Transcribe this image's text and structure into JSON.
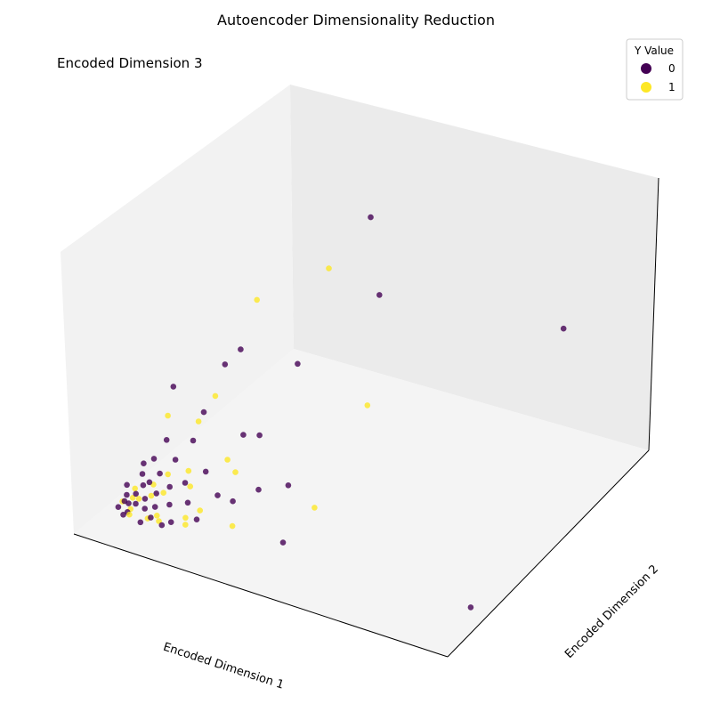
{
  "chart_data": {
    "type": "scatter",
    "projection": "3d",
    "title": "Autoencoder Dimensionality Reduction",
    "xlabel": "Encoded Dimension 1",
    "ylabel": "Encoded Dimension 2",
    "zlabel": "Encoded Dimension 3",
    "ticks_visible": false,
    "legend": {
      "title": "Y Value",
      "placement": "top-right",
      "entries": [
        {
          "label": "0",
          "color": "#440154"
        },
        {
          "label": "1",
          "color": "#FDE725"
        }
      ]
    },
    "colors": {
      "class_0": "#440154",
      "class_1": "#FDE725"
    },
    "series": [
      {
        "values": [
          [
            0.05,
            0.08,
            0.03
          ],
          [
            0.07,
            0.1,
            0.05
          ],
          [
            0.08,
            0.12,
            0.04
          ],
          [
            0.06,
            0.14,
            0.06
          ],
          [
            0.09,
            0.09,
            0.02
          ],
          [
            0.1,
            0.15,
            0.07
          ],
          [
            0.12,
            0.11,
            0.05
          ],
          [
            0.04,
            0.18,
            0.08
          ],
          [
            0.11,
            0.2,
            0.09
          ],
          [
            0.14,
            0.16,
            0.06
          ],
          [
            0.13,
            0.22,
            0.1
          ],
          [
            0.16,
            0.12,
            0.04
          ],
          [
            0.08,
            0.25,
            0.11
          ],
          [
            0.18,
            0.19,
            0.08
          ],
          [
            0.15,
            0.28,
            0.12
          ],
          [
            0.2,
            0.14,
            0.05
          ],
          [
            0.06,
            0.3,
            0.13
          ],
          [
            0.22,
            0.24,
            0.1
          ],
          [
            0.1,
            0.32,
            0.15
          ],
          [
            0.25,
            0.18,
            0.06
          ],
          [
            0.19,
            0.35,
            0.16
          ],
          [
            0.28,
            0.27,
            0.12
          ],
          [
            0.3,
            0.1,
            0.03
          ],
          [
            0.12,
            0.4,
            0.2
          ],
          [
            0.24,
            0.42,
            0.22
          ],
          [
            0.33,
            0.2,
            0.08
          ],
          [
            0.35,
            0.33,
            0.16
          ],
          [
            0.4,
            0.15,
            0.05
          ],
          [
            0.45,
            0.25,
            0.12
          ],
          [
            0.5,
            0.3,
            0.1
          ],
          [
            0.55,
            0.45,
            0.3
          ],
          [
            0.2,
            0.3,
            0.42
          ],
          [
            0.3,
            0.6,
            0.45
          ],
          [
            0.25,
            0.5,
            0.3
          ],
          [
            0.6,
            0.35,
            0.15
          ],
          [
            0.72,
            0.4,
            0.18
          ],
          [
            0.35,
            0.65,
            0.5
          ],
          [
            0.8,
            0.2,
            0.05
          ],
          [
            0.42,
            0.55,
            0.25
          ],
          [
            1.7,
            0.25,
            0.02
          ],
          [
            0.7,
            1.2,
            0.9
          ],
          [
            0.9,
            0.9,
            0.75
          ],
          [
            1.3,
            1.9,
            0.5
          ],
          [
            0.58,
            0.75,
            0.48
          ],
          [
            0.17,
            0.06,
            0.01
          ],
          [
            0.09,
            0.05,
            0.02
          ],
          [
            0.21,
            0.08,
            0.03
          ],
          [
            0.27,
            0.07,
            0.02
          ]
        ]
      },
      {
        "values": [
          [
            0.05,
            0.12,
            0.04
          ],
          [
            0.08,
            0.16,
            0.05
          ],
          [
            0.1,
            0.1,
            0.03
          ],
          [
            0.07,
            0.2,
            0.07
          ],
          [
            0.12,
            0.14,
            0.06
          ],
          [
            0.14,
            0.24,
            0.09
          ],
          [
            0.16,
            0.18,
            0.07
          ],
          [
            0.18,
            0.3,
            0.12
          ],
          [
            0.2,
            0.22,
            0.08
          ],
          [
            0.22,
            0.12,
            0.03
          ],
          [
            0.26,
            0.34,
            0.14
          ],
          [
            0.3,
            0.28,
            0.11
          ],
          [
            0.34,
            0.16,
            0.04
          ],
          [
            0.38,
            0.22,
            0.06
          ],
          [
            0.42,
            0.4,
            0.2
          ],
          [
            0.48,
            0.36,
            0.18
          ],
          [
            0.15,
            0.35,
            0.3
          ],
          [
            0.25,
            0.45,
            0.28
          ],
          [
            0.28,
            0.55,
            0.35
          ],
          [
            0.3,
            0.9,
            0.6
          ],
          [
            0.55,
            0.2,
            0.05
          ],
          [
            0.8,
            0.5,
            0.1
          ],
          [
            0.9,
            0.8,
            0.4
          ],
          [
            0.6,
            1.0,
            0.75
          ],
          [
            0.11,
            0.07,
            0.02
          ],
          [
            0.19,
            0.09,
            0.02
          ],
          [
            0.24,
            0.1,
            0.02
          ],
          [
            0.36,
            0.12,
            0.03
          ]
        ]
      }
    ]
  }
}
